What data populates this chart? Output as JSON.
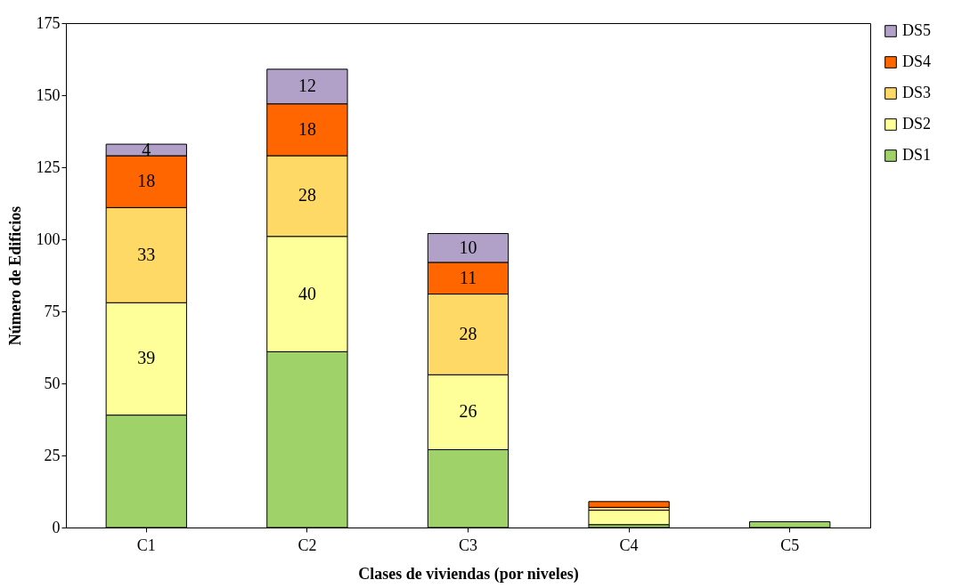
{
  "chart_data": {
    "type": "bar",
    "stacked": true,
    "xlabel": "Clases de viviendas (por niveles)",
    "ylabel": "Número de Edificios",
    "categories": [
      "C1",
      "C2",
      "C3",
      "C4",
      "C5"
    ],
    "ylim": [
      0,
      175
    ],
    "yticks": [
      0,
      25,
      50,
      75,
      100,
      125,
      150,
      175
    ],
    "grid": false,
    "legend": "right",
    "series": [
      {
        "name": "DS1",
        "color": "#9fd36a",
        "values": [
          39,
          61,
          27,
          1,
          2
        ]
      },
      {
        "name": "DS2",
        "color": "#ffff99",
        "values": [
          39,
          40,
          26,
          5,
          0
        ],
        "value_labels": [
          "39",
          "40",
          "26",
          null,
          null
        ]
      },
      {
        "name": "DS3",
        "color": "#ffd966",
        "values": [
          33,
          28,
          28,
          1,
          0
        ],
        "value_labels": [
          "33",
          "28",
          "28",
          null,
          null
        ]
      },
      {
        "name": "DS4",
        "color": "#ff6600",
        "values": [
          18,
          18,
          11,
          2,
          0
        ],
        "value_labels": [
          "18",
          "18",
          "11",
          null,
          null
        ]
      },
      {
        "name": "DS5",
        "color": "#b1a0c7",
        "values": [
          4,
          12,
          10,
          0,
          0
        ],
        "value_labels": [
          "4",
          "12",
          "10",
          null,
          null
        ]
      }
    ]
  }
}
